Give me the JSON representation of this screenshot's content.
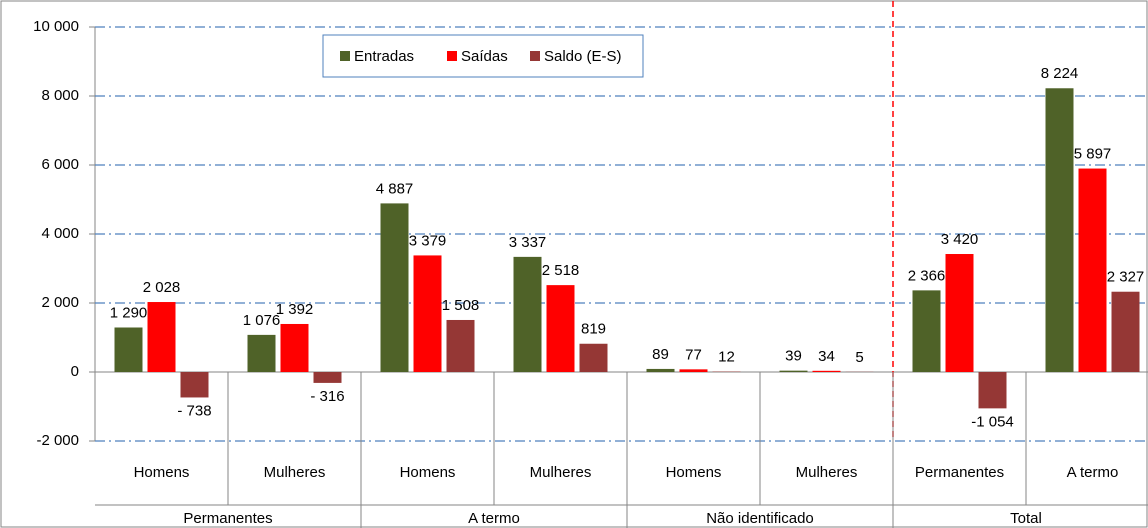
{
  "chart_data": {
    "type": "bar",
    "groups": [
      {
        "name": "Permanentes",
        "categories": [
          "Homens",
          "Mulheres"
        ]
      },
      {
        "name": "A termo",
        "categories": [
          "Homens",
          "Mulheres"
        ]
      },
      {
        "name": "Não identificado",
        "categories": [
          "Homens",
          "Mulheres"
        ]
      },
      {
        "name": "Total",
        "categories": [
          "Permanentes",
          "A termo"
        ]
      }
    ],
    "series": [
      {
        "name": "Entradas",
        "color": "#4f6228",
        "values": [
          1290,
          1076,
          4887,
          3337,
          89,
          39,
          2366,
          8224
        ],
        "value_labels": [
          "1 290",
          "1 076",
          "4 887",
          "3 337",
          "89",
          "39",
          "2 366",
          "8 224"
        ]
      },
      {
        "name": "Saídas",
        "color": "#ff0000",
        "values": [
          2028,
          1392,
          3379,
          2518,
          77,
          34,
          3420,
          5897
        ],
        "value_labels": [
          "2 028",
          "1 392",
          "3 379",
          "2 518",
          "77",
          "34",
          "3 420",
          "5 897"
        ]
      },
      {
        "name": "Saldo (E-S)",
        "color": "#953735",
        "values": [
          -738,
          -316,
          1508,
          819,
          12,
          5,
          -1054,
          2327
        ],
        "value_labels": [
          "- 738",
          "- 316",
          "1 508",
          "819",
          "12",
          "5",
          "-1 054",
          "2 327"
        ]
      }
    ],
    "ylim": [
      -2000,
      10000
    ],
    "yticks": [
      {
        "value": -2000,
        "label": "-2 000"
      },
      0,
      {
        "value": 2000,
        "label": "2 000"
      },
      {
        "value": 4000,
        "label": "4 000"
      },
      {
        "value": 6000,
        "label": "6 000"
      },
      {
        "value": 8000,
        "label": "8 000"
      },
      {
        "value": 10000,
        "label": "10 000"
      }
    ],
    "grid": true,
    "legend": "top"
  }
}
